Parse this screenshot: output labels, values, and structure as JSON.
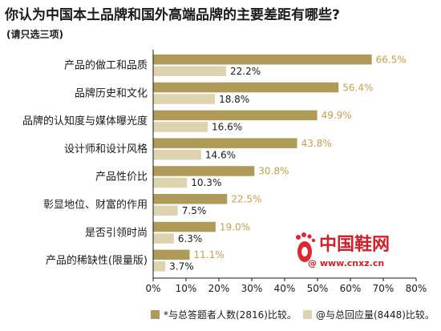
{
  "title": "你认为中国本土品牌和国外高端品牌的主要差距有哪些?",
  "subtitle": "(请只选三项)",
  "chart_data": {
    "type": "bar",
    "orientation": "horizontal",
    "categories": [
      "产品的做工和品质",
      "品牌历史和文化",
      "品牌的认知度与媒体曝光度",
      "设计师和设计风格",
      "产品性价比",
      "彰显地位、财富的作用",
      "是否引领时尚",
      "产品的稀缺性(限量版)"
    ],
    "series": [
      {
        "name": "*与总答题者人数(2816)比较。",
        "color": "#b09a57",
        "values": [
          66.5,
          56.4,
          49.9,
          43.8,
          30.8,
          22.5,
          19.0,
          11.1
        ],
        "labels": [
          "66.5%",
          "56.4%",
          "49.9%",
          "43.8%",
          "30.8%",
          "22.5%",
          "19.0%",
          "11.1%"
        ]
      },
      {
        "name": "@与总回应量(8448)比较。",
        "color": "#ddd3ae",
        "values": [
          22.2,
          18.8,
          16.6,
          14.6,
          10.3,
          7.5,
          6.3,
          3.7
        ],
        "labels": [
          "22.2%",
          "18.8%",
          "16.6%",
          "14.6%",
          "10.3%",
          "7.5%",
          "6.3%",
          "3.7%"
        ]
      }
    ],
    "xlim": [
      0,
      80
    ],
    "xticks": [
      "0%",
      "10%",
      "20%",
      "30%",
      "40%",
      "50%",
      "60%",
      "70%",
      "80%"
    ],
    "grid": false,
    "legend": "bottom"
  },
  "watermark": {
    "brand": "中国鞋网",
    "url": "@ www.cnxz.cn"
  }
}
